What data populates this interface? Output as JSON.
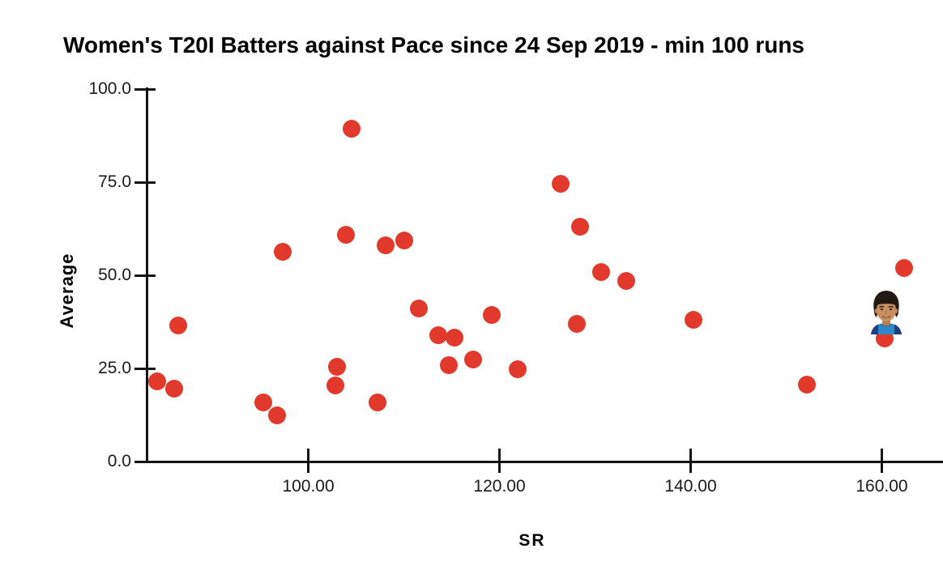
{
  "chart_data": {
    "type": "scatter",
    "title": "Women's T20I Batters against Pace since 24 Sep 2019 - min 100 runs",
    "xlabel": "SR",
    "ylabel": "Average",
    "x_axis": {
      "min": 83,
      "max": 166.4,
      "ticks": [
        100,
        120,
        140,
        160
      ],
      "tick_labels": [
        "100.00",
        "120.00",
        "140.00",
        "160.00"
      ]
    },
    "y_axis": {
      "min": 0,
      "max": 100,
      "ticks": [
        0,
        25,
        50,
        75,
        100
      ],
      "tick_labels": [
        "0.0",
        "25.0",
        "50.0",
        "75.0",
        "100.0"
      ]
    },
    "grid": false,
    "legend": "none",
    "point_color": "#e1392b",
    "points": [
      {
        "sr": 84.2,
        "average": 21.5
      },
      {
        "sr": 86.0,
        "average": 19.6
      },
      {
        "sr": 86.4,
        "average": 36.5
      },
      {
        "sr": 95.3,
        "average": 15.9
      },
      {
        "sr": 96.7,
        "average": 12.4
      },
      {
        "sr": 97.3,
        "average": 56.3
      },
      {
        "sr": 102.8,
        "average": 20.4
      },
      {
        "sr": 103.0,
        "average": 25.4
      },
      {
        "sr": 103.9,
        "average": 60.9
      },
      {
        "sr": 104.5,
        "average": 89.3
      },
      {
        "sr": 107.2,
        "average": 15.9
      },
      {
        "sr": 108.1,
        "average": 58.0
      },
      {
        "sr": 110.0,
        "average": 59.3
      },
      {
        "sr": 111.6,
        "average": 41.1
      },
      {
        "sr": 113.6,
        "average": 33.9
      },
      {
        "sr": 114.7,
        "average": 25.9
      },
      {
        "sr": 115.3,
        "average": 33.3
      },
      {
        "sr": 117.2,
        "average": 27.4
      },
      {
        "sr": 119.2,
        "average": 39.3
      },
      {
        "sr": 121.9,
        "average": 24.8
      },
      {
        "sr": 126.4,
        "average": 74.6
      },
      {
        "sr": 128.1,
        "average": 37.0
      },
      {
        "sr": 128.4,
        "average": 63.0
      },
      {
        "sr": 130.6,
        "average": 50.9
      },
      {
        "sr": 133.3,
        "average": 48.5
      },
      {
        "sr": 140.3,
        "average": 38.0
      },
      {
        "sr": 152.2,
        "average": 20.7
      },
      {
        "sr": 160.3,
        "average": 33.0
      },
      {
        "sr": 162.3,
        "average": 52.0
      }
    ],
    "annotation": {
      "marker": "player-headshot-photo",
      "sr": 160.5,
      "average": 40.2
    }
  },
  "colors": {
    "point": "#e1392b",
    "axis": "#141414",
    "text": "#000000",
    "background": "#ffffff"
  }
}
